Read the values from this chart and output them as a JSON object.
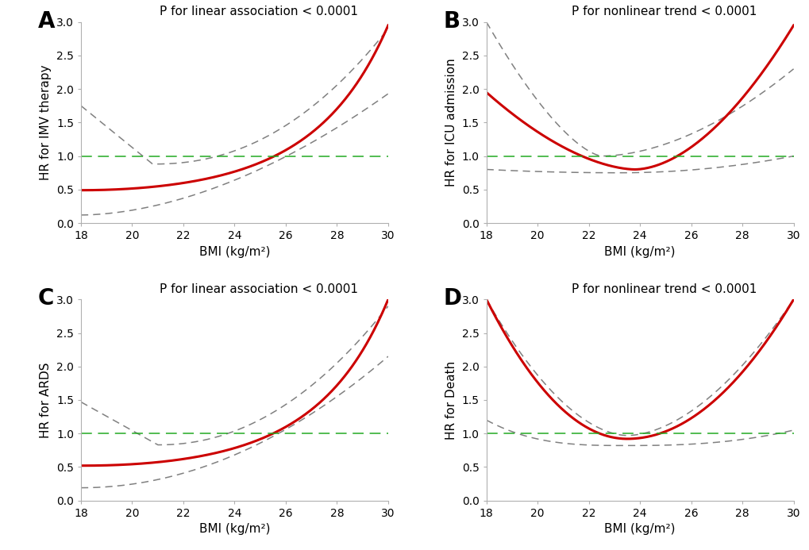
{
  "panels": [
    {
      "label": "A",
      "title": "P for linear association < 0.0001",
      "ylabel": "HR for IMV therapy"
    },
    {
      "label": "B",
      "title": "P for nonlinear trend < 0.0001",
      "ylabel": "HR for ICU admission"
    },
    {
      "label": "C",
      "title": "P for linear association < 0.0001",
      "ylabel": "HR for ARDS"
    },
    {
      "label": "D",
      "title": "P for nonlinear trend < 0.0001",
      "ylabel": "HR for Death"
    }
  ],
  "bmi_range": [
    18,
    30
  ],
  "ylim": [
    0.0,
    3.0
  ],
  "yticks": [
    0.0,
    0.5,
    1.0,
    1.5,
    2.0,
    2.5,
    3.0
  ],
  "xticks": [
    18,
    20,
    22,
    24,
    26,
    28,
    30
  ],
  "xlabel": "BMI (kg/m²)",
  "hr_color": "#cc0000",
  "ci_color": "#808080",
  "ref_color": "#22aa22",
  "hr_linewidth": 2.2,
  "ci_linewidth": 1.1,
  "ref_linewidth": 1.1,
  "background_color": "#ffffff",
  "label_fontsize": 20,
  "title_fontsize": 11,
  "axis_label_fontsize": 11,
  "tick_fontsize": 10
}
